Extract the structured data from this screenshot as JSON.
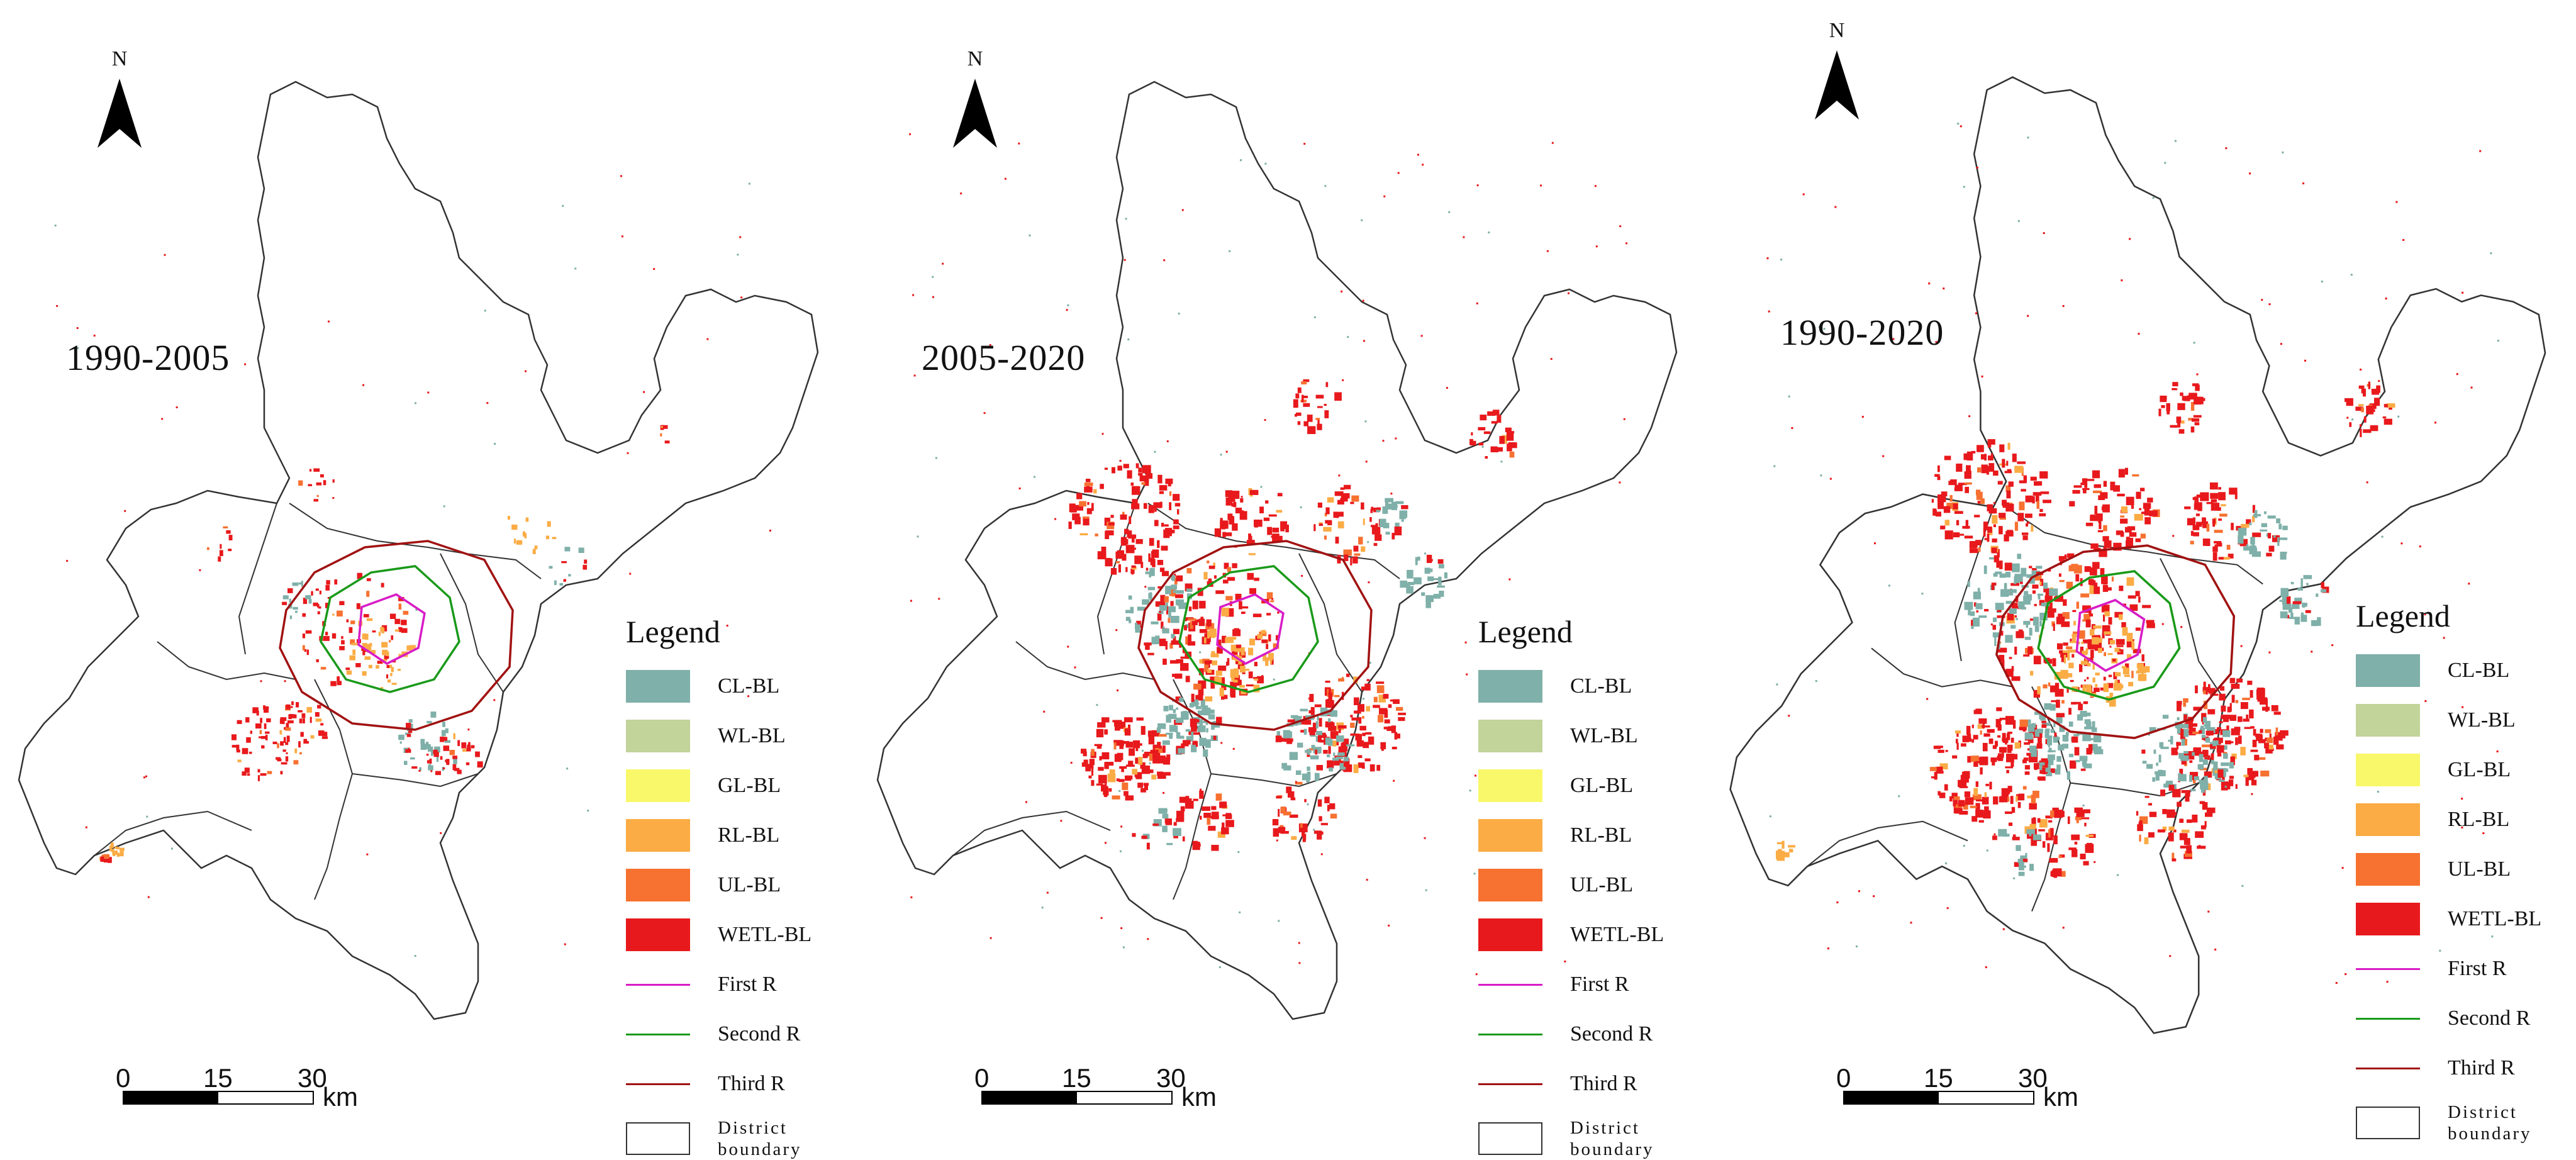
{
  "north_label": "N",
  "panels": [
    {
      "period": "1990-2005"
    },
    {
      "period": "2005-2020"
    },
    {
      "period": "1990-2020"
    }
  ],
  "legend": {
    "title": "Legend",
    "items": [
      {
        "label": "CL-BL",
        "color": "#7fb0a9",
        "kind": "patch"
      },
      {
        "label": "WL-BL",
        "color": "#c2d49a",
        "kind": "patch"
      },
      {
        "label": "GL-BL",
        "color": "#f8f86a",
        "kind": "patch"
      },
      {
        "label": "RL-BL",
        "color": "#fbac45",
        "kind": "patch"
      },
      {
        "label": "UL-BL",
        "color": "#f77130",
        "kind": "patch"
      },
      {
        "label": "WETL-BL",
        "color": "#e8191c",
        "kind": "patch"
      },
      {
        "label": "First R",
        "color": "#d81cc6",
        "kind": "line"
      },
      {
        "label": "Second R",
        "color": "#1a9a1a",
        "kind": "line"
      },
      {
        "label": "Third R",
        "color": "#a11212",
        "kind": "line"
      },
      {
        "label": "District boundary",
        "color": "#333333",
        "kind": "box"
      }
    ]
  },
  "scale": {
    "ticks": [
      "0",
      "15",
      "30"
    ],
    "unit": "km"
  }
}
